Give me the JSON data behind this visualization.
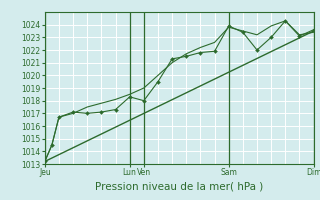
{
  "background_color": "#d4eced",
  "grid_color": "#ffffff",
  "line_color": "#2d6b2d",
  "marker_color": "#2d6b2d",
  "ylabel_range": [
    1013,
    1025
  ],
  "yticks": [
    1013,
    1014,
    1015,
    1016,
    1017,
    1018,
    1019,
    1020,
    1021,
    1022,
    1023,
    1024
  ],
  "xlabel": "Pression niveau de la mer( hPa )",
  "xtick_labels_pos": [
    0,
    6,
    7,
    13,
    19
  ],
  "xtick_labels_text": [
    "Jeu",
    "Lun",
    "Ven",
    "Sam",
    "Dim"
  ],
  "vlines": [
    0,
    6,
    7,
    13,
    19
  ],
  "series1_x": [
    0,
    0.5,
    1,
    2,
    3,
    4,
    5,
    6,
    7,
    8,
    9,
    10,
    11,
    12,
    13,
    14,
    15,
    16,
    17,
    18,
    19
  ],
  "series1_y": [
    1013.2,
    1014.5,
    1016.7,
    1017.1,
    1017.0,
    1017.1,
    1017.3,
    1018.3,
    1018.0,
    1019.5,
    1021.3,
    1021.5,
    1021.8,
    1021.9,
    1023.9,
    1023.4,
    1022.0,
    1023.0,
    1024.3,
    1023.1,
    1023.6
  ],
  "series2_x": [
    0,
    0.5,
    1,
    2,
    3,
    4,
    5,
    6,
    7,
    8,
    9,
    10,
    11,
    12,
    13,
    14,
    15,
    16,
    17,
    18,
    19
  ],
  "series2_y": [
    1013.2,
    1014.5,
    1016.7,
    1017.0,
    1017.5,
    1017.8,
    1018.1,
    1018.5,
    1019.0,
    1020.0,
    1021.0,
    1021.7,
    1022.2,
    1022.6,
    1023.8,
    1023.5,
    1023.2,
    1023.9,
    1024.3,
    1023.2,
    1023.4
  ],
  "trend_x": [
    0,
    19
  ],
  "trend_y": [
    1013.2,
    1023.5
  ],
  "tick_fontsize": 5.5,
  "xlabel_fontsize": 7.5
}
